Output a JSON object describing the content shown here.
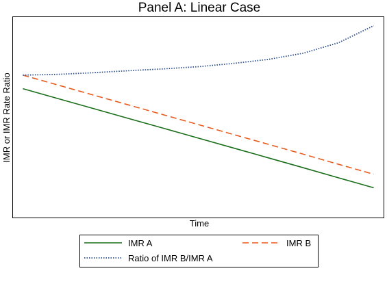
{
  "chart_data": {
    "type": "line",
    "title": "Panel A: Linear Case",
    "xlabel": "Time",
    "ylabel": "IMR or IMR Rate Ratio",
    "x": [
      0,
      0.1,
      0.2,
      0.3,
      0.4,
      0.5,
      0.6,
      0.7,
      0.8,
      0.9,
      1.0
    ],
    "xlim": [
      -0.03,
      1.03
    ],
    "ylim": [
      0,
      1
    ],
    "ticks_shown": false,
    "grid": false,
    "legend_placement": "below",
    "series": [
      {
        "name": "IMR A",
        "color": "#1a6e1a",
        "style": "solid",
        "values": [
          0.642,
          0.593,
          0.544,
          0.495,
          0.446,
          0.397,
          0.348,
          0.299,
          0.25,
          0.2,
          0.151
        ]
      },
      {
        "name": "IMR B",
        "color": "#e85a1e",
        "style": "dashed",
        "values": [
          0.709,
          0.66,
          0.611,
          0.562,
          0.513,
          0.464,
          0.415,
          0.366,
          0.317,
          0.267,
          0.218
        ]
      },
      {
        "name": "Ratio of IMR B/IMR A",
        "color": "#2a4e8c",
        "style": "dotted",
        "values": [
          0.709,
          0.713,
          0.721,
          0.731,
          0.74,
          0.751,
          0.767,
          0.787,
          0.818,
          0.87,
          0.954
        ]
      }
    ]
  }
}
